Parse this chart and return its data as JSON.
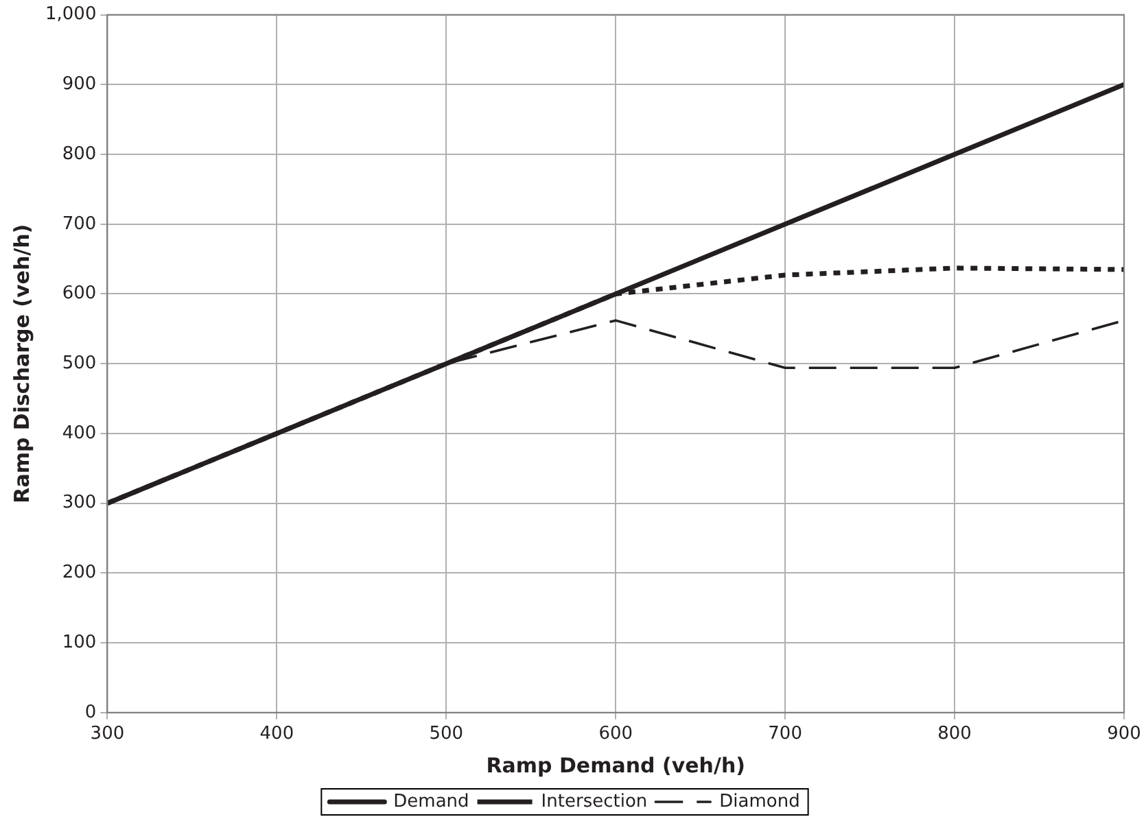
{
  "chart_data": {
    "type": "line",
    "xlabel": "Ramp Demand (veh/h)",
    "ylabel": "Ramp Discharge (veh/h)",
    "x": [
      300,
      400,
      500,
      600,
      700,
      800,
      900
    ],
    "series": [
      {
        "name": "Demand",
        "color": "#231f20",
        "line_style": "solid",
        "values": [
          300,
          400,
          500,
          600,
          700,
          800,
          900
        ]
      },
      {
        "name": "Intersection",
        "color": "#231f20",
        "line_style": "dotted",
        "values": [
          300,
          400,
          500,
          600,
          627,
          637,
          635
        ]
      },
      {
        "name": "Diamond",
        "color": "#231f20",
        "line_style": "dashed",
        "values": [
          300,
          400,
          500,
          562,
          494,
          494,
          562
        ]
      }
    ],
    "xlim": [
      300,
      900
    ],
    "xticks": [
      300,
      400,
      500,
      600,
      700,
      800,
      900
    ],
    "ylim": [
      0,
      1000
    ],
    "yticks": [
      0,
      100,
      200,
      300,
      400,
      500,
      600,
      700,
      800,
      900,
      {
        "value": 1000,
        "label": "1,000"
      }
    ],
    "grid": true,
    "legend": "bottom",
    "marker": "none"
  }
}
